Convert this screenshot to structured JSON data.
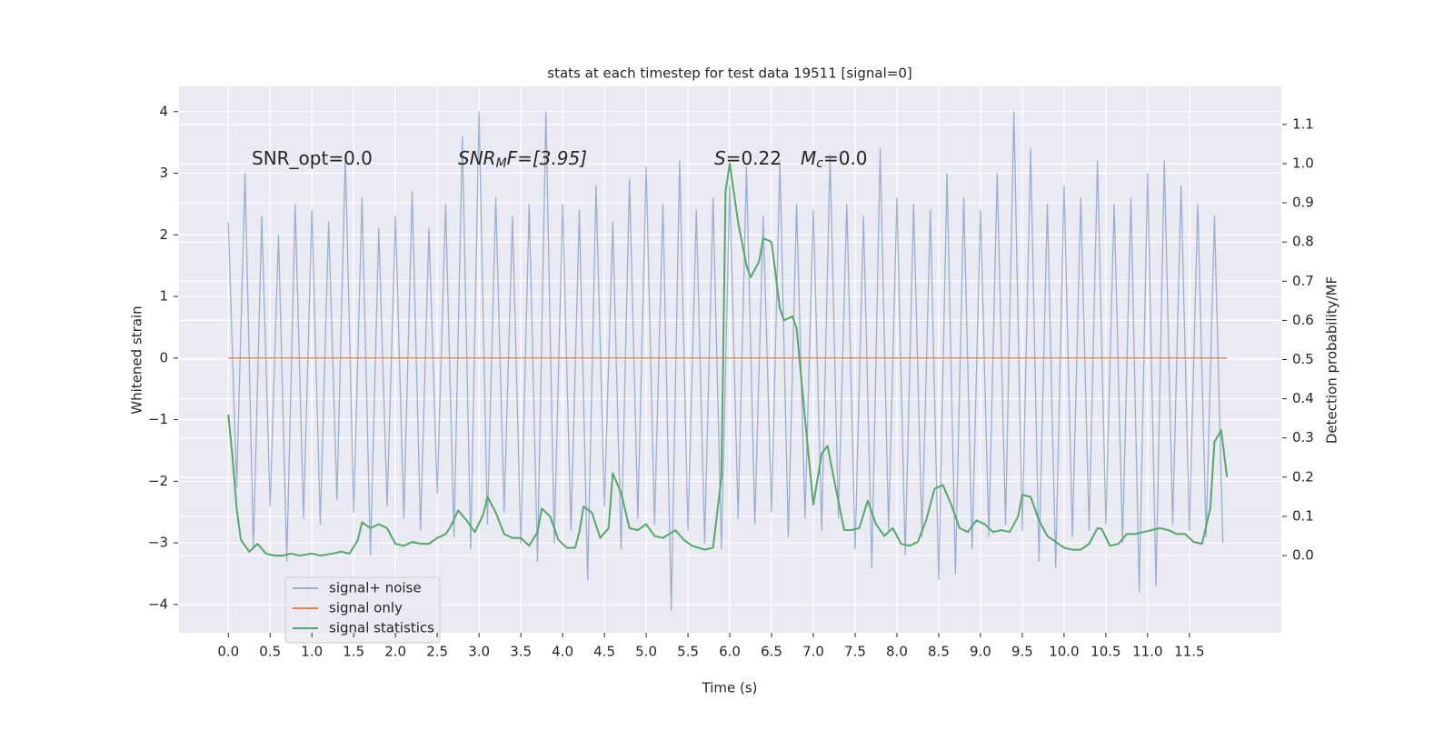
{
  "chart_data": {
    "type": "line",
    "title": "stats at each timestep for test data 19511 [signal=0]",
    "xlabel": "Time (s)",
    "ylabel": "Whitened strain",
    "y2label": "Detection probability/MF",
    "xlim": [
      -0.59,
      12.6
    ],
    "ylim": [
      -4.46,
      4.41
    ],
    "y2lim": [
      -0.197,
      1.197
    ],
    "grid": true,
    "legend": "lower left",
    "xticks": [
      {
        "value": 0,
        "label": "0.0"
      },
      {
        "value": 0.5,
        "label": "0.5"
      },
      {
        "value": 1,
        "label": "1.0"
      },
      {
        "value": 1.5,
        "label": "1.5"
      },
      {
        "value": 2,
        "label": "2.0"
      },
      {
        "value": 2.5,
        "label": "2.5"
      },
      {
        "value": 3,
        "label": "3.0"
      },
      {
        "value": 3.5,
        "label": "3.5"
      },
      {
        "value": 4,
        "label": "4.0"
      },
      {
        "value": 4.5,
        "label": "4.5"
      },
      {
        "value": 5,
        "label": "5.0"
      },
      {
        "value": 5.5,
        "label": "5.5"
      },
      {
        "value": 6,
        "label": "6.0"
      },
      {
        "value": 6.5,
        "label": "6.5"
      },
      {
        "value": 7,
        "label": "7.0"
      },
      {
        "value": 7.5,
        "label": "7.5"
      },
      {
        "value": 8,
        "label": "8.0"
      },
      {
        "value": 8.5,
        "label": "8.5"
      },
      {
        "value": 9,
        "label": "9.0"
      },
      {
        "value": 9.5,
        "label": "9.5"
      },
      {
        "value": 10,
        "label": "10.0"
      },
      {
        "value": 10.5,
        "label": "10.5"
      },
      {
        "value": 11,
        "label": "11.0"
      },
      {
        "value": 11.5,
        "label": "11.5"
      }
    ],
    "yticks": [
      {
        "value": -4,
        "label": "−4"
      },
      {
        "value": -3,
        "label": "−3"
      },
      {
        "value": -2,
        "label": "−2"
      },
      {
        "value": -1,
        "label": "−1"
      },
      0,
      1,
      2,
      3,
      4
    ],
    "y2ticks": [
      {
        "value": 0,
        "label": "0.0"
      },
      {
        "value": 0.1,
        "label": "0.1"
      },
      {
        "value": 0.2,
        "label": "0.2"
      },
      {
        "value": 0.3,
        "label": "0.3"
      },
      {
        "value": 0.4,
        "label": "0.4"
      },
      {
        "value": 0.5,
        "label": "0.5"
      },
      {
        "value": 0.6,
        "label": "0.6"
      },
      {
        "value": 0.7,
        "label": "0.7"
      },
      {
        "value": 0.8,
        "label": "0.8"
      },
      {
        "value": 0.9,
        "label": "0.9"
      },
      {
        "value": 1,
        "label": "1.0"
      },
      {
        "value": 1.1,
        "label": "1.1"
      }
    ],
    "annotations": [
      {
        "parts": [
          "SNR_opt=0.0"
        ]
      },
      {
        "parts": [
          "SNR",
          "M",
          "F=[3.95]"
        ]
      },
      {
        "parts": [
          "S",
          "=0.22"
        ]
      },
      {
        "parts": [
          "M",
          "c",
          "=0.0"
        ]
      }
    ],
    "series": [
      {
        "name": "signal+ noise",
        "color": "#4c72b0",
        "opacity": 0.5,
        "x": [
          0,
          0.1,
          0.2,
          0.3,
          0.4,
          0.5,
          0.6,
          0.7,
          0.8,
          0.9,
          1,
          1.1,
          1.2,
          1.3,
          1.4,
          1.5,
          1.6,
          1.7,
          1.8,
          1.9,
          2,
          2.1,
          2.2,
          2.3,
          2.4,
          2.5,
          2.6,
          2.7,
          2.8,
          2.9,
          3,
          3.1,
          3.2,
          3.3,
          3.4,
          3.5,
          3.6,
          3.7,
          3.8,
          3.9,
          4,
          4.1,
          4.2,
          4.3,
          4.4,
          4.5,
          4.6,
          4.7,
          4.8,
          4.9,
          5,
          5.1,
          5.2,
          5.3,
          5.4,
          5.5,
          5.6,
          5.7,
          5.8,
          5.9,
          6,
          6.1,
          6.2,
          6.3,
          6.4,
          6.5,
          6.6,
          6.7,
          6.8,
          6.9,
          7,
          7.1,
          7.2,
          7.3,
          7.4,
          7.5,
          7.6,
          7.7,
          7.8,
          7.9,
          8,
          8.1,
          8.2,
          8.3,
          8.4,
          8.5,
          8.6,
          8.7,
          8.8,
          8.9,
          9,
          9.1,
          9.2,
          9.3,
          9.4,
          9.5,
          9.6,
          9.7,
          9.8,
          9.9,
          10,
          10.1,
          10.2,
          10.3,
          10.4,
          10.5,
          10.6,
          10.7,
          10.8,
          10.9,
          11,
          11.1,
          11.2,
          11.3,
          11.4,
          11.5,
          11.6,
          11.7,
          11.8,
          11.9
        ],
        "values": [
          2.2,
          -2.1,
          3.0,
          -3.1,
          2.3,
          -2.4,
          2.0,
          -3.3,
          2.5,
          -2.6,
          2.4,
          -2.7,
          2.2,
          -2.3,
          3.3,
          -2.5,
          2.6,
          -3.2,
          2.1,
          -2.4,
          2.3,
          -2.6,
          2.7,
          -2.8,
          2.1,
          -2.2,
          2.5,
          -2.9,
          3.6,
          -3.1,
          4.0,
          -2.7,
          2.6,
          -2.5,
          2.3,
          -3.0,
          2.5,
          -3.3,
          4.0,
          -3.0,
          2.5,
          -2.8,
          2.4,
          -3.6,
          2.8,
          -2.4,
          2.2,
          -3.1,
          2.9,
          -2.6,
          3.1,
          -2.7,
          2.5,
          -4.1,
          3.2,
          -2.8,
          2.4,
          -3.0,
          2.6,
          -3.1,
          2.8,
          -2.6,
          3.1,
          -2.7,
          2.3,
          -2.5,
          3.2,
          -2.9,
          2.5,
          -2.6,
          2.4,
          -2.8,
          3.3,
          -2.6,
          2.5,
          -3.1,
          2.3,
          -3.4,
          3.4,
          -2.8,
          2.6,
          -3.2,
          2.5,
          -2.9,
          2.4,
          -3.6,
          3.0,
          -3.5,
          2.6,
          -3.1,
          2.4,
          -2.9,
          3.0,
          -2.7,
          4.0,
          -2.8,
          3.4,
          -3.3,
          2.5,
          -3.4,
          2.8,
          -2.9,
          2.6,
          -2.8,
          3.2,
          -2.7,
          2.5,
          -3.0,
          2.6,
          -3.8,
          3.0,
          -3.7,
          3.2,
          -2.7,
          2.8,
          -2.8,
          2.5,
          -2.9,
          2.3,
          -3.0
        ]
      },
      {
        "name": "signal only",
        "color": "#dd8452",
        "x": [
          0,
          11.95
        ],
        "values": [
          0,
          0
        ]
      },
      {
        "name": "signal statistics",
        "color": "#55a868",
        "axis": "y2",
        "x": [
          0,
          0.05,
          0.1,
          0.15,
          0.25,
          0.35,
          0.45,
          0.55,
          0.65,
          0.75,
          0.85,
          1,
          1.1,
          1.25,
          1.35,
          1.45,
          1.55,
          1.6,
          1.7,
          1.8,
          1.9,
          2,
          2.1,
          2.2,
          2.3,
          2.4,
          2.5,
          2.6,
          2.65,
          2.75,
          2.85,
          2.95,
          3.05,
          3.1,
          3.2,
          3.3,
          3.4,
          3.5,
          3.6,
          3.7,
          3.75,
          3.85,
          3.95,
          4.05,
          4.15,
          4.2,
          4.25,
          4.35,
          4.45,
          4.55,
          4.6,
          4.7,
          4.8,
          4.9,
          5,
          5.1,
          5.2,
          5.35,
          5.45,
          5.55,
          5.7,
          5.8,
          5.9,
          5.95,
          6,
          6.1,
          6.2,
          6.25,
          6.35,
          6.4,
          6.5,
          6.6,
          6.65,
          6.75,
          6.8,
          6.9,
          7,
          7.1,
          7.17,
          7.27,
          7.37,
          7.45,
          7.55,
          7.65,
          7.75,
          7.85,
          7.95,
          8.05,
          8.15,
          8.25,
          8.35,
          8.45,
          8.55,
          8.65,
          8.75,
          8.85,
          8.95,
          9.05,
          9.15,
          9.25,
          9.35,
          9.45,
          9.5,
          9.6,
          9.7,
          9.8,
          9.9,
          10,
          10.1,
          10.2,
          10.3,
          10.4,
          10.45,
          10.55,
          10.65,
          10.75,
          10.85,
          10.95,
          11.05,
          11.15,
          11.25,
          11.35,
          11.45,
          11.55,
          11.65,
          11.75,
          11.8,
          11.88,
          11.95
        ],
        "values": [
          0.36,
          0.25,
          0.12,
          0.04,
          0.01,
          0.03,
          0.005,
          0,
          0,
          0.005,
          0,
          0.005,
          0,
          0.005,
          0.01,
          0.005,
          0.04,
          0.085,
          0.07,
          0.08,
          0.07,
          0.03,
          0.025,
          0.035,
          0.03,
          0.03,
          0.045,
          0.055,
          0.07,
          0.115,
          0.09,
          0.06,
          0.105,
          0.15,
          0.11,
          0.055,
          0.045,
          0.045,
          0.025,
          0.06,
          0.12,
          0.1,
          0.04,
          0.02,
          0.02,
          0.06,
          0.125,
          0.11,
          0.045,
          0.07,
          0.21,
          0.16,
          0.07,
          0.065,
          0.08,
          0.05,
          0.045,
          0.065,
          0.04,
          0.025,
          0.015,
          0.02,
          0.2,
          0.93,
          1.0,
          0.85,
          0.74,
          0.71,
          0.75,
          0.81,
          0.8,
          0.63,
          0.6,
          0.61,
          0.58,
          0.35,
          0.13,
          0.26,
          0.28,
          0.17,
          0.065,
          0.065,
          0.07,
          0.14,
          0.08,
          0.05,
          0.07,
          0.03,
          0.025,
          0.035,
          0.09,
          0.17,
          0.18,
          0.13,
          0.07,
          0.06,
          0.09,
          0.08,
          0.06,
          0.065,
          0.06,
          0.1,
          0.155,
          0.15,
          0.09,
          0.05,
          0.035,
          0.02,
          0.015,
          0.015,
          0.03,
          0.07,
          0.068,
          0.025,
          0.03,
          0.055,
          0.055,
          0.06,
          0.065,
          0.07,
          0.065,
          0.055,
          0.055,
          0.035,
          0.03,
          0.12,
          0.29,
          0.32,
          0.2
        ]
      }
    ]
  }
}
